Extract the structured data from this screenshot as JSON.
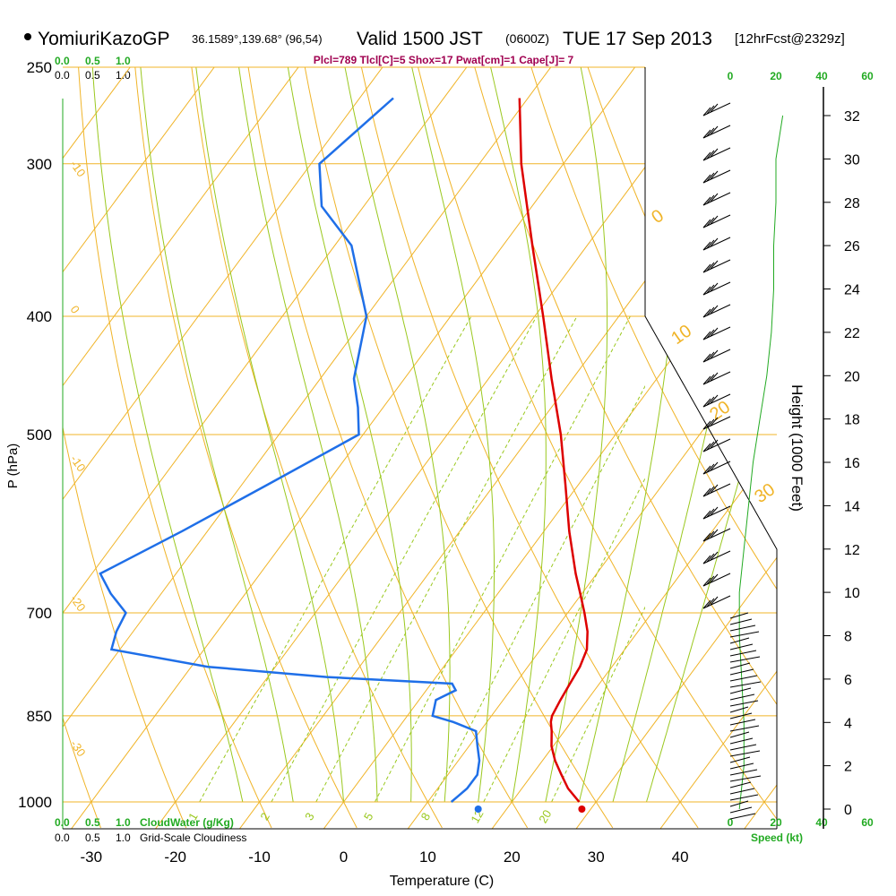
{
  "header": {
    "station": "YomiuriKazoGP",
    "coords": "36.1589°,139.68° (96,54)",
    "valid_prefix": "Valid 1500 JST",
    "valid_z": "(0600Z)",
    "valid_date": "TUE 17 Sep 2013",
    "fcst": "[12hrFcst@2329z]",
    "indices": "Plcl=789 Tlcl[C]=5 Shox=17 Pwat[cm]=1 Cape[J]= 7"
  },
  "chart_data": {
    "type": "skew-t",
    "xlabel": "Temperature (C)",
    "ylabel": "P (hPa)",
    "right_axis_label": "Height (1000 Feet)",
    "speed_label": "Speed (kt)",
    "cloudwater_label": "CloudWater (g/Kg)",
    "cloudiness_label": "Grid-Scale Cloudiness",
    "temperature_ticks": [
      -30,
      -20,
      -10,
      0,
      10,
      20,
      30,
      40
    ],
    "pressure_ticks": [
      250,
      300,
      400,
      500,
      700,
      850,
      1000
    ],
    "height_ticks_kft": [
      0,
      2,
      4,
      6,
      8,
      10,
      12,
      14,
      16,
      18,
      20,
      22,
      24,
      26,
      28,
      30,
      32
    ],
    "cloudwater_ticks": [
      "0.0",
      "0.5",
      "1.0"
    ],
    "cloudiness_ticks": [
      "0.0",
      "0.5",
      "1.0"
    ],
    "speed_ticks": [
      "0",
      "20",
      "40",
      "60"
    ],
    "isotherm_labels": [
      "-30",
      "-20",
      "-10",
      "0",
      "10",
      "20",
      "30"
    ],
    "mixing_ratio_labels": [
      "1",
      "2",
      "3",
      "5",
      "8",
      "12",
      "20"
    ],
    "colors": {
      "temperature": "#dd0000",
      "dewpoint": "#1f6fe8",
      "isotherm": "#f0b428",
      "adiabat": "#9ac81e",
      "cloud": "#22aa22",
      "indices": "#a00050"
    },
    "temperature_profile": [
      {
        "p": 1000,
        "t": 28.0
      },
      {
        "p": 975,
        "t": 25.5
      },
      {
        "p": 950,
        "t": 23.5
      },
      {
        "p": 925,
        "t": 21.5
      },
      {
        "p": 900,
        "t": 19.8
      },
      {
        "p": 875,
        "t": 18.5
      },
      {
        "p": 860,
        "t": 17.6
      },
      {
        "p": 850,
        "t": 17.2
      },
      {
        "p": 825,
        "t": 16.8
      },
      {
        "p": 800,
        "t": 16.5
      },
      {
        "p": 775,
        "t": 16.2
      },
      {
        "p": 750,
        "t": 15.5
      },
      {
        "p": 725,
        "t": 14.0
      },
      {
        "p": 700,
        "t": 12.0
      },
      {
        "p": 675,
        "t": 9.8
      },
      {
        "p": 650,
        "t": 7.5
      },
      {
        "p": 600,
        "t": 3.0
      },
      {
        "p": 550,
        "t": -1.5
      },
      {
        "p": 500,
        "t": -6.5
      },
      {
        "p": 450,
        "t": -12.5
      },
      {
        "p": 400,
        "t": -19.0
      },
      {
        "p": 350,
        "t": -26.5
      },
      {
        "p": 300,
        "t": -35.0
      },
      {
        "p": 265,
        "t": -41.0
      }
    ],
    "dewpoint_profile": [
      {
        "p": 1000,
        "td": 12.8
      },
      {
        "p": 975,
        "td": 13.5
      },
      {
        "p": 950,
        "td": 13.5
      },
      {
        "p": 925,
        "td": 12.5
      },
      {
        "p": 900,
        "td": 11.0
      },
      {
        "p": 875,
        "td": 9.5
      },
      {
        "p": 860,
        "td": 6.0
      },
      {
        "p": 850,
        "td": 3.0
      },
      {
        "p": 825,
        "td": 2.0
      },
      {
        "p": 810,
        "td": 3.5
      },
      {
        "p": 800,
        "td": 2.5
      },
      {
        "p": 790,
        "td": -13.0
      },
      {
        "p": 775,
        "td": -28.0
      },
      {
        "p": 750,
        "td": -41.0
      },
      {
        "p": 725,
        "td": -42.0
      },
      {
        "p": 700,
        "td": -42.5
      },
      {
        "p": 675,
        "td": -46.0
      },
      {
        "p": 650,
        "td": -49.0
      },
      {
        "p": 600,
        "td": -43.0
      },
      {
        "p": 550,
        "td": -37.0
      },
      {
        "p": 500,
        "td": -30.5
      },
      {
        "p": 475,
        "td": -33.0
      },
      {
        "p": 450,
        "td": -36.0
      },
      {
        "p": 400,
        "td": -40.0
      },
      {
        "p": 350,
        "td": -48.0
      },
      {
        "p": 325,
        "td": -55.0
      },
      {
        "p": 300,
        "td": -59.0
      },
      {
        "p": 265,
        "td": -56.0
      }
    ],
    "wind_speed_profile_kt": [
      {
        "h": 0,
        "spd": 4
      },
      {
        "h": 2,
        "spd": 6
      },
      {
        "h": 4,
        "spd": 6
      },
      {
        "h": 6,
        "spd": 5
      },
      {
        "h": 8,
        "spd": 4
      },
      {
        "h": 10,
        "spd": 4
      },
      {
        "h": 12,
        "spd": 6
      },
      {
        "h": 14,
        "spd": 8
      },
      {
        "h": 16,
        "spd": 10
      },
      {
        "h": 18,
        "spd": 13
      },
      {
        "h": 20,
        "spd": 16
      },
      {
        "h": 22,
        "spd": 18
      },
      {
        "h": 24,
        "spd": 19
      },
      {
        "h": 26,
        "spd": 19
      },
      {
        "h": 28,
        "spd": 20
      },
      {
        "h": 30,
        "spd": 20
      },
      {
        "h": 32,
        "spd": 23
      }
    ]
  }
}
